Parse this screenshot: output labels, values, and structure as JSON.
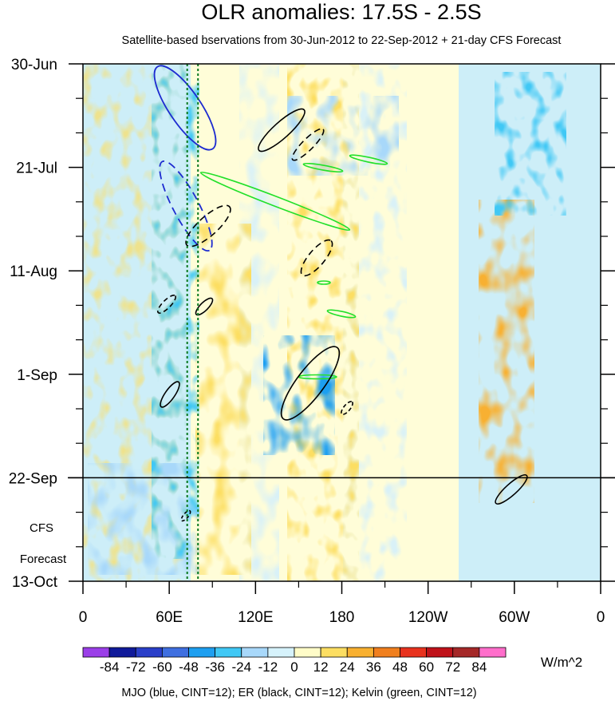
{
  "chart_data": {
    "type": "heatmap",
    "title": "OLR anomalies: 17.5S - 2.5S",
    "subtitle": "Satellite-based bservations from 30-Jun-2012 to 22-Sep-2012 + 21-day CFS Forecast",
    "x_tick_labels": [
      "0",
      "60E",
      "120E",
      "180",
      "120W",
      "60W",
      "0"
    ],
    "x_tick_degrees": [
      0,
      60,
      120,
      180,
      240,
      300,
      360
    ],
    "y_tick_labels": [
      "30-Jun",
      "21-Jul",
      "11-Aug",
      "1-Sep",
      "22-Sep",
      "13-Oct"
    ],
    "y_tick_days": [
      0,
      21,
      42,
      63,
      84,
      105
    ],
    "forecast_start_day": 84,
    "forecast_label_line1": "CFS",
    "forecast_label_line2": "Forecast",
    "colorbar": {
      "levels": [
        "-84",
        "-72",
        "-60",
        "-48",
        "-36",
        "-24",
        "-12",
        "0",
        "12",
        "24",
        "36",
        "48",
        "60",
        "72",
        "84"
      ],
      "colors": [
        "#9b3fe8",
        "#101a9a",
        "#2a3fc9",
        "#3f6fe0",
        "#1e9ff0",
        "#40c8f5",
        "#a8d8fa",
        "#d6f2fb",
        "#fffcc8",
        "#fcde62",
        "#f8b030",
        "#f07f1e",
        "#e8321e",
        "#c0121a",
        "#a52828",
        "#ff6ecb"
      ],
      "units": "W/m^2"
    },
    "vertical_reference_lines_deg": [
      72.5,
      80
    ],
    "contour_legend": "MJO (blue, CINT=12); ER (black, CINT=12); Kelvin (green, CINT=12)"
  }
}
